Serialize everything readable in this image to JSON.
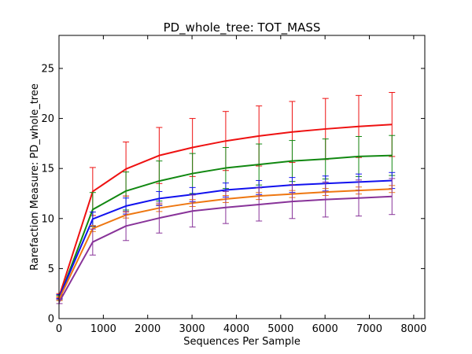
{
  "chart_data": {
    "type": "line",
    "title": "PD_whole_tree: TOT_MASS",
    "xlabel": "Sequences Per Sample",
    "ylabel": "Rarefaction Measure: PD_whole_tree",
    "xlim": [
      0,
      8250
    ],
    "ylim": [
      0,
      28.3
    ],
    "xticks": [
      0,
      1000,
      2000,
      3000,
      4000,
      5000,
      6000,
      7000,
      8000
    ],
    "yticks": [
      0,
      5,
      10,
      15,
      20,
      25
    ],
    "grid": false,
    "legend": "none",
    "x": [
      10,
      760,
      1510,
      2260,
      3010,
      3760,
      4510,
      5260,
      6010,
      6760,
      7510
    ],
    "series": [
      {
        "color": "#ee1111",
        "values": [
          2.3,
          12.7,
          14.95,
          16.3,
          17.1,
          17.75,
          18.25,
          18.65,
          18.95,
          19.2,
          19.4
        ],
        "errors": [
          0.2,
          2.4,
          2.7,
          2.8,
          2.9,
          2.95,
          3.0,
          3.05,
          3.05,
          3.1,
          3.2
        ]
      },
      {
        "color": "#118811",
        "values": [
          2.1,
          10.9,
          12.75,
          13.75,
          14.5,
          15.05,
          15.4,
          15.75,
          15.95,
          16.2,
          16.3
        ],
        "errors": [
          0.2,
          1.7,
          1.9,
          2.0,
          2.0,
          2.05,
          2.05,
          2.05,
          2.0,
          2.0,
          2.0
        ]
      },
      {
        "color": "#1111ee",
        "values": [
          2.2,
          9.95,
          11.25,
          12.0,
          12.4,
          12.85,
          13.1,
          13.35,
          13.5,
          13.65,
          13.8
        ],
        "errors": [
          0.2,
          0.7,
          0.8,
          0.7,
          0.7,
          0.7,
          0.7,
          0.75,
          0.75,
          0.8,
          0.8
        ]
      },
      {
        "color": "#ee7711",
        "values": [
          2.0,
          9.0,
          10.35,
          11.05,
          11.55,
          11.95,
          12.25,
          12.45,
          12.65,
          12.8,
          12.95
        ],
        "errors": [
          0.2,
          0.3,
          0.3,
          0.35,
          0.35,
          0.35,
          0.35,
          0.35,
          0.35,
          0.35,
          0.35
        ]
      },
      {
        "color": "#883399",
        "values": [
          1.7,
          7.65,
          9.25,
          10.05,
          10.75,
          11.1,
          11.4,
          11.7,
          11.9,
          12.05,
          12.2
        ],
        "errors": [
          0.2,
          1.3,
          1.45,
          1.5,
          1.6,
          1.6,
          1.65,
          1.7,
          1.75,
          1.8,
          1.8
        ]
      }
    ]
  }
}
